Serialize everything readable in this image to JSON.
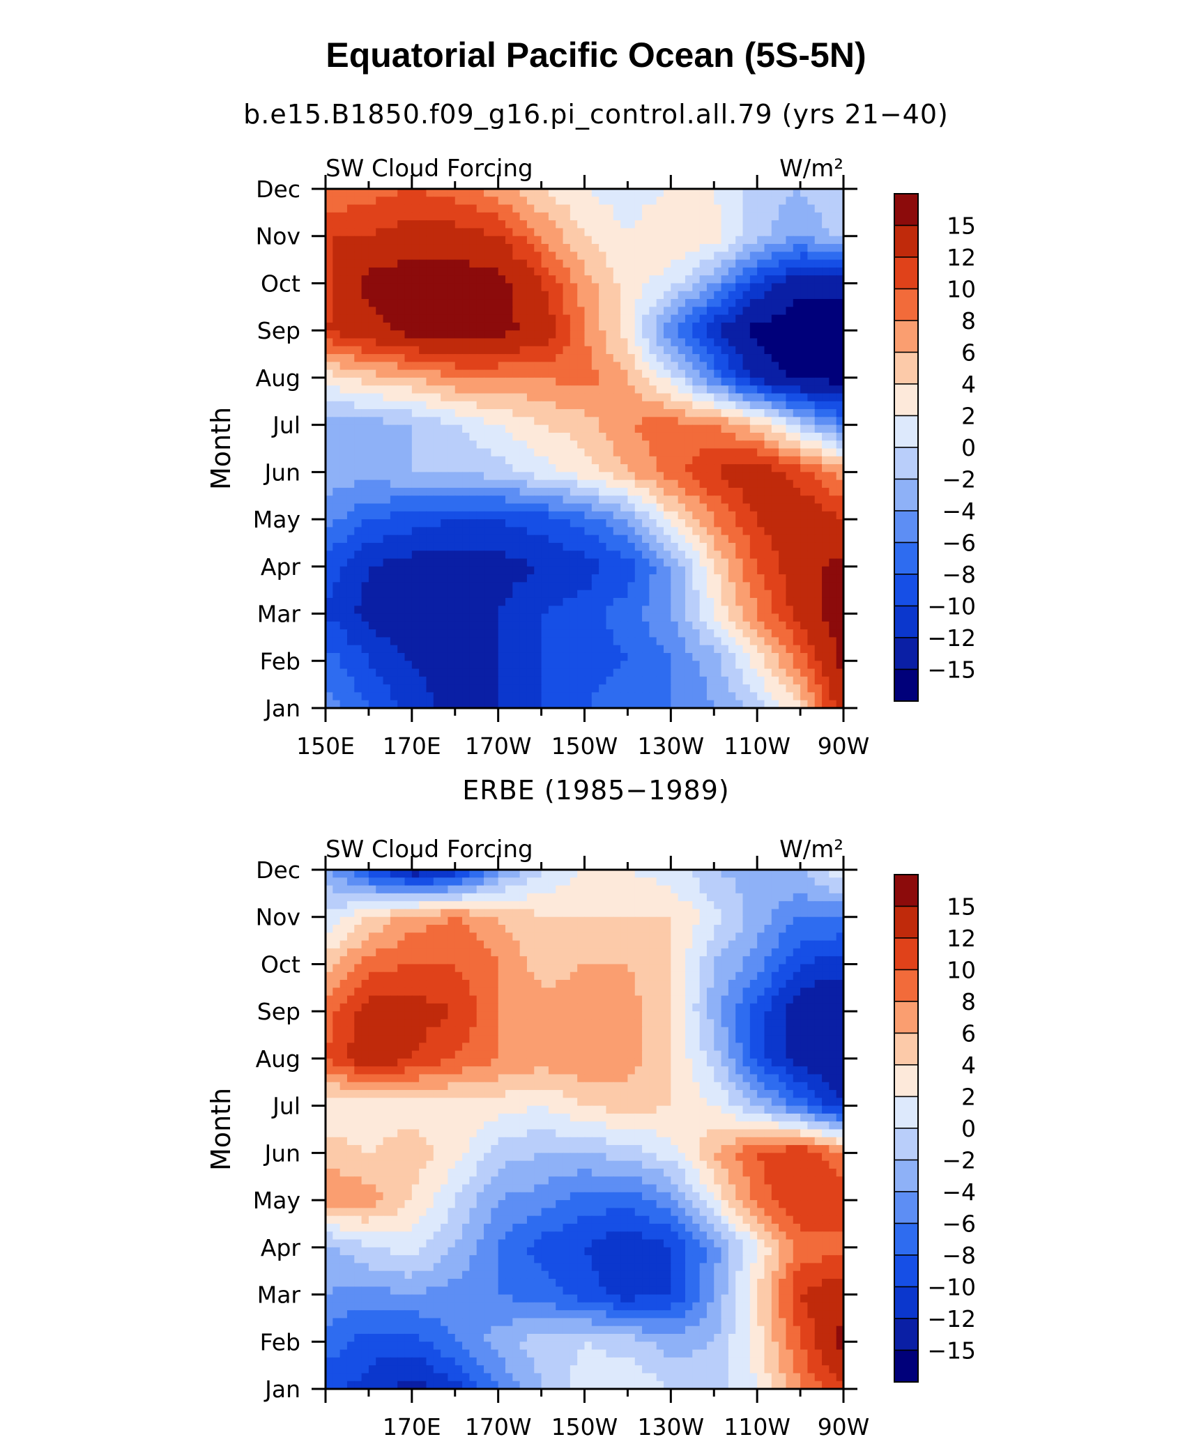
{
  "figure": {
    "title": "Equatorial Pacific Ocean (5S-5N)",
    "case_subtitle": "b.e15.B1850.f09_g16.pi_control.all.79 (yrs 21−40)",
    "obs_subtitle": "ERBE (1985−1989)"
  },
  "chart_data": [
    {
      "type": "heatmap",
      "name": "model",
      "left_label": "SW Cloud Forcing",
      "right_label": "W/m²",
      "ylabel": "Month",
      "xlabel": "",
      "x_ticks": [
        "150E",
        "170E",
        "170W",
        "150W",
        "130W",
        "110W",
        "90W"
      ],
      "x_range": [
        150,
        270
      ],
      "y_ticks": [
        "Jan",
        "Feb",
        "Mar",
        "Apr",
        "May",
        "Jun",
        "Jul",
        "Aug",
        "Sep",
        "Oct",
        "Nov",
        "Dec"
      ],
      "levels": [
        -15,
        -12,
        -10,
        -8,
        -6,
        -4,
        -2,
        0,
        2,
        4,
        6,
        8,
        10,
        12,
        15
      ],
      "colorbar_labels": [
        "15",
        "12",
        "10",
        "8",
        "6",
        "4",
        "2",
        "0",
        "−2",
        "−4",
        "−6",
        "−8",
        "−10",
        "−12",
        "−15"
      ],
      "longitudes": [
        150,
        160,
        170,
        180,
        190,
        200,
        210,
        220,
        230,
        240,
        250,
        260,
        270
      ],
      "grid": [
        [
          -5,
          -8,
          -11,
          -13,
          -12,
          -10,
          -8,
          -7,
          -6,
          -4,
          -1,
          4,
          14
        ],
        [
          -7,
          -10,
          -12,
          -13,
          -12,
          -10,
          -9,
          -8,
          -6,
          -3,
          3,
          9,
          16
        ],
        [
          -10,
          -13,
          -14,
          -14,
          -12,
          -10,
          -9,
          -7,
          -4,
          2,
          8,
          13,
          17
        ],
        [
          -9,
          -12,
          -13,
          -13,
          -13,
          -12,
          -11,
          -9,
          -4,
          4,
          10,
          14,
          16
        ],
        [
          -5,
          -8,
          -9,
          -10,
          -10,
          -9,
          -7,
          -4,
          3,
          8,
          12,
          14,
          12
        ],
        [
          -3,
          -3,
          -2,
          -2,
          -1,
          1,
          3,
          6,
          9,
          12,
          14,
          11,
          7
        ],
        [
          -3,
          -3,
          -2,
          0,
          2,
          4,
          5,
          8,
          9,
          8,
          5,
          -1,
          -6
        ],
        [
          3,
          5,
          6,
          8,
          8,
          8,
          9,
          6,
          1,
          -6,
          -13,
          -16,
          -16
        ],
        [
          12,
          14,
          16,
          16,
          16,
          14,
          8,
          3,
          -6,
          -12,
          -16,
          -17,
          -17
        ],
        [
          11,
          16,
          17,
          17,
          16,
          12,
          7,
          3,
          1,
          -4,
          -10,
          -14,
          -14
        ],
        [
          12,
          12,
          13,
          13,
          12,
          8,
          4,
          2,
          4,
          3,
          -1,
          -4,
          -1
        ],
        [
          8,
          9,
          10,
          9,
          7,
          4,
          2,
          1,
          2,
          2,
          -1,
          -2,
          0
        ]
      ]
    },
    {
      "type": "heatmap",
      "name": "obs",
      "left_label": "SW Cloud Forcing",
      "right_label": "W/m²",
      "ylabel": "Month",
      "xlabel": "",
      "x_ticks": [
        "170E",
        "170W",
        "150W",
        "130W",
        "110W",
        "90W"
      ],
      "x_range": [
        150,
        270
      ],
      "y_ticks": [
        "Jan",
        "Feb",
        "Mar",
        "Apr",
        "May",
        "Jun",
        "Jul",
        "Aug",
        "Sep",
        "Oct",
        "Nov",
        "Dec"
      ],
      "levels": [
        -15,
        -12,
        -10,
        -8,
        -6,
        -4,
        -2,
        0,
        2,
        4,
        6,
        8,
        10,
        12,
        15
      ],
      "colorbar_labels": [
        "15",
        "12",
        "10",
        "8",
        "6",
        "4",
        "2",
        "0",
        "−2",
        "−4",
        "−6",
        "−8",
        "−10",
        "−12",
        "−15"
      ],
      "longitudes": [
        150,
        160,
        170,
        180,
        190,
        200,
        210,
        220,
        230,
        240,
        250,
        260,
        270
      ],
      "grid": [
        [
          -9,
          -11,
          -13,
          -11,
          -6,
          -2,
          1,
          2,
          0,
          -1,
          2,
          8,
          12
        ],
        [
          -7,
          -9,
          -9,
          -6,
          -3,
          -1,
          0,
          -1,
          -3,
          -2,
          3,
          10,
          16
        ],
        [
          -4,
          -5,
          -4,
          -5,
          -6,
          -7,
          -9,
          -11,
          -10,
          -4,
          4,
          12,
          14
        ],
        [
          -3,
          0,
          1,
          -2,
          -6,
          -9,
          -10,
          -12,
          -10,
          -5,
          2,
          9,
          9
        ],
        [
          8,
          7,
          4,
          0,
          -4,
          -5,
          -7,
          -7,
          -5,
          2,
          9,
          12,
          12
        ],
        [
          5,
          4,
          5,
          3,
          -1,
          -2,
          -2,
          -1,
          1,
          6,
          10,
          12,
          8
        ],
        [
          2,
          3,
          3,
          3,
          3,
          2,
          4,
          5,
          4,
          2,
          -2,
          -7,
          -12
        ],
        [
          10,
          14,
          12,
          10,
          8,
          7,
          8,
          7,
          4,
          -1,
          -9,
          -13,
          -15
        ],
        [
          9,
          13,
          13,
          12,
          8,
          7,
          7,
          7,
          4,
          -3,
          -9,
          -14,
          -15
        ],
        [
          5,
          9,
          10,
          10,
          8,
          5,
          6,
          6,
          4,
          -2,
          -5,
          -10,
          -11
        ],
        [
          0,
          4,
          7,
          8,
          6,
          4,
          4,
          4,
          4,
          1,
          -3,
          -6,
          -6
        ],
        [
          -3,
          -9,
          -14,
          -12,
          -5,
          0,
          2,
          2,
          1,
          -2,
          -3,
          -2,
          2
        ]
      ]
    }
  ],
  "colors": {
    "palette": [
      "#00007a",
      "#0a1fa5",
      "#0b37cd",
      "#164fe6",
      "#2e6cf0",
      "#5d8ef4",
      "#8eb1f7",
      "#b9cefa",
      "#dde9fc",
      "#fde9da",
      "#fccaa9",
      "#fa9e70",
      "#f26b3a",
      "#e0421a",
      "#c02a0b",
      "#8c0b0b"
    ]
  }
}
